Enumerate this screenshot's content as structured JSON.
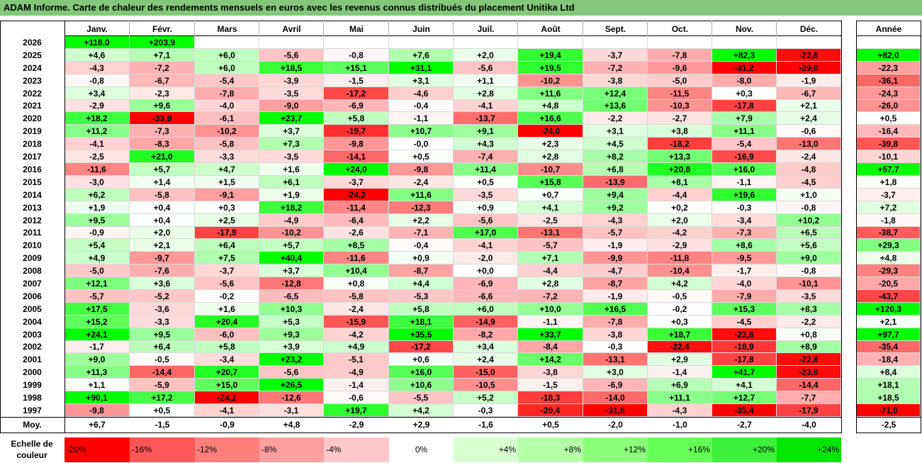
{
  "title": "ADAM Informe. Carte de chaleur des rendements mensuels en euros avec les revenus connus distribués du placement Unitika Ltd",
  "colors": {
    "title_bg": "#83c77a",
    "neg": "#ff0000",
    "pos": "#00ff00",
    "neutral": "#ffffff"
  },
  "chart_data": {
    "type": "heatmap",
    "title": "ADAM Informe. Carte de chaleur des rendements mensuels en euros avec les revenus connus distribués du placement Unitika Ltd",
    "columns": [
      "Janv.",
      "Févr.",
      "Mars",
      "Avril",
      "Mai",
      "Juin",
      "Juil.",
      "Août",
      "Sept.",
      "Oct.",
      "Nov.",
      "Déc."
    ],
    "year_label": "Année",
    "rows": [
      {
        "year": "2026",
        "values": [
          "+118,0",
          "+203,9",
          "",
          "",
          "",
          "",
          "",
          "",
          "",
          "",
          "",
          ""
        ],
        "annual": ""
      },
      {
        "year": "2025",
        "values": [
          "+4,6",
          "+7,1",
          "+6,0",
          "-5,6",
          "-0,8",
          "+7,6",
          "+2,0",
          "+19,4",
          "-3,7",
          "-7,8",
          "+82,3",
          "-22,8"
        ],
        "annual": "+82,0"
      },
      {
        "year": "2024",
        "values": [
          "-4,3",
          "-7,2",
          "+6,0",
          "+18,5",
          "+15,1",
          "+31,1",
          "-5,6",
          "+19,5",
          "-7,2",
          "-9,6",
          "-31,2",
          "-29,0"
        ],
        "annual": "-22,3"
      },
      {
        "year": "2023",
        "values": [
          "-0,8",
          "-6,7",
          "-5,4",
          "-3,9",
          "-1,5",
          "+3,1",
          "+1,1",
          "-10,2",
          "-3,8",
          "-5,0",
          "-8,0",
          "-1,9"
        ],
        "annual": "-36,1"
      },
      {
        "year": "2022",
        "values": [
          "+3,4",
          "-2,3",
          "-7,8",
          "-3,5",
          "-17,2",
          "-4,6",
          "+2,8",
          "+11,6",
          "+12,4",
          "-11,5",
          "+0,3",
          "-6,7"
        ],
        "annual": "-24,3"
      },
      {
        "year": "2021",
        "values": [
          "-2,9",
          "+9,6",
          "-4,0",
          "-9,0",
          "-6,9",
          "-0,4",
          "-4,1",
          "+4,8",
          "+13,6",
          "-10,3",
          "-17,8",
          "+2,1"
        ],
        "annual": "-26,0"
      },
      {
        "year": "2020",
        "values": [
          "+18,2",
          "-33,9",
          "-6,1",
          "+23,7",
          "+5,8",
          "-1,1",
          "-13,7",
          "+16,6",
          "-2,2",
          "-2,7",
          "+7,9",
          "+2,4"
        ],
        "annual": "+0,5"
      },
      {
        "year": "2019",
        "values": [
          "+11,2",
          "-7,3",
          "-10,2",
          "+3,7",
          "-19,7",
          "+10,7",
          "+9,1",
          "-24,0",
          "+3,1",
          "+3,8",
          "+11,1",
          "-0,6"
        ],
        "annual": "-16,4"
      },
      {
        "year": "2018",
        "values": [
          "-4,1",
          "-8,3",
          "-5,8",
          "+7,3",
          "-9,8",
          "-0,0",
          "+4,3",
          "+2,3",
          "+4,5",
          "-18,2",
          "-5,4",
          "-13,0"
        ],
        "annual": "-39,8"
      },
      {
        "year": "2017",
        "values": [
          "-2,5",
          "+21,0",
          "-3,3",
          "-3,5",
          "-14,1",
          "+0,5",
          "-7,4",
          "+2,8",
          "+8,2",
          "+13,3",
          "-16,9",
          "-2,4"
        ],
        "annual": "-10,1"
      },
      {
        "year": "2016",
        "values": [
          "-11,6",
          "+5,7",
          "+4,7",
          "+1,6",
          "+24,0",
          "-9,8",
          "+11,4",
          "-10,7",
          "+6,8",
          "+20,8",
          "+16,0",
          "-4,8"
        ],
        "annual": "+57,7"
      },
      {
        "year": "2015",
        "values": [
          "-3,0",
          "+1,4",
          "+1,5",
          "+6,1",
          "-3,7",
          "-2,4",
          "+0,5",
          "+15,8",
          "-13,9",
          "+8,1",
          "-1,1",
          "-4,5"
        ],
        "annual": "+1,8"
      },
      {
        "year": "2014",
        "values": [
          "+6,2",
          "-5,8",
          "-9,1",
          "+1,9",
          "-24,2",
          "+11,6",
          "-3,5",
          "+0,7",
          "+9,4",
          "-4,4",
          "+19,6",
          "+1,0"
        ],
        "annual": "-3,7"
      },
      {
        "year": "2013",
        "values": [
          "+1,9",
          "+0,4",
          "+0,3",
          "+18,2",
          "-11,4",
          "-12,3",
          "+0,9",
          "+4,1",
          "+9,2",
          "+0,2",
          "-0,3",
          "-0,8"
        ],
        "annual": "+7,2"
      },
      {
        "year": "2012",
        "values": [
          "+9,5",
          "+0,4",
          "+2,5",
          "-4,9",
          "-6,4",
          "+2,2",
          "-5,6",
          "-2,5",
          "-4,3",
          "+2,0",
          "-3,4",
          "+10,2"
        ],
        "annual": "-1,8"
      },
      {
        "year": "2011",
        "values": [
          "-0,9",
          "+2,0",
          "-17,8",
          "-10,2",
          "-2,6",
          "-7,1",
          "+17,0",
          "-13,1",
          "-5,7",
          "-4,2",
          "-7,3",
          "+6,5"
        ],
        "annual": "-38,7"
      },
      {
        "year": "2010",
        "values": [
          "+5,4",
          "+2,1",
          "+6,4",
          "+5,7",
          "+8,5",
          "-0,4",
          "-4,1",
          "-5,7",
          "-1,9",
          "-2,9",
          "+8,6",
          "+5,6"
        ],
        "annual": "+29,3"
      },
      {
        "year": "2009",
        "values": [
          "+4,9",
          "-9,7",
          "+7,5",
          "+40,4",
          "-11,6",
          "+0,9",
          "-2,0",
          "+7,1",
          "-9,9",
          "-11,8",
          "-9,5",
          "+9,0"
        ],
        "annual": "+4,8"
      },
      {
        "year": "2008",
        "values": [
          "-5,0",
          "-7,6",
          "-3,7",
          "+3,7",
          "+10,4",
          "-8,7",
          "+0,0",
          "-4,4",
          "-4,7",
          "-10,4",
          "-1,7",
          "-0,8"
        ],
        "annual": "-29,3"
      },
      {
        "year": "2007",
        "values": [
          "+12,1",
          "+3,6",
          "-5,6",
          "-12,8",
          "+0,8",
          "+4,4",
          "-6,9",
          "+2,8",
          "-8,7",
          "+4,2",
          "-4,0",
          "-10,1"
        ],
        "annual": "-20,5"
      },
      {
        "year": "2006",
        "values": [
          "-5,7",
          "-5,2",
          "-0,2",
          "-6,5",
          "-5,8",
          "-5,3",
          "-6,6",
          "-7,2",
          "-1,9",
          "-0,5",
          "-7,9",
          "-3,5"
        ],
        "annual": "-43,7"
      },
      {
        "year": "2005",
        "values": [
          "+17,5",
          "-3,6",
          "+1,6",
          "+10,3",
          "-2,4",
          "+5,8",
          "+6,0",
          "+10,0",
          "+16,5",
          "-0,2",
          "+15,3",
          "+8,3"
        ],
        "annual": "+120,3"
      },
      {
        "year": "2004",
        "values": [
          "+15,2",
          "-3,3",
          "+20,4",
          "+5,3",
          "-15,9",
          "+18,1",
          "-14,9",
          "-1,1",
          "-7,8",
          "+0,3",
          "-4,5",
          "-2,2"
        ],
        "annual": "+2,1"
      },
      {
        "year": "2003",
        "values": [
          "+24,1",
          "+9,5",
          "-6,0",
          "+9,3",
          "-4,2",
          "+35,5",
          "-8,2",
          "+33,7",
          "-3,8",
          "+18,7",
          "-22,8",
          "+0,8"
        ],
        "annual": "+97,7"
      },
      {
        "year": "2002",
        "values": [
          "-1,7",
          "+6,4",
          "+5,8",
          "+3,9",
          "+4,9",
          "-17,2",
          "+3,4",
          "-8,4",
          "-0,3",
          "-22,4",
          "-18,9",
          "+8,9"
        ],
        "annual": "-35,4"
      },
      {
        "year": "2001",
        "values": [
          "+9,0",
          "-0,5",
          "-3,4",
          "+23,2",
          "-5,1",
          "+0,6",
          "+2,4",
          "+14,2",
          "-13,1",
          "+2,9",
          "-17,8",
          "-22,8"
        ],
        "annual": "-18,4"
      },
      {
        "year": "2000",
        "values": [
          "+11,3",
          "-14,4",
          "+20,7",
          "-5,6",
          "-4,9",
          "+16,0",
          "-15,0",
          "-3,8",
          "+3,0",
          "-1,4",
          "+41,7",
          "-23,0"
        ],
        "annual": "+8,4"
      },
      {
        "year": "1999",
        "values": [
          "+1,1",
          "-5,9",
          "+15,0",
          "+26,5",
          "-1,4",
          "+10,6",
          "-10,5",
          "-1,5",
          "-6,9",
          "+6,9",
          "+4,1",
          "-14,4"
        ],
        "annual": "+18,1"
      },
      {
        "year": "1998",
        "values": [
          "+90,1",
          "+17,2",
          "-24,2",
          "-12,6",
          "-0,6",
          "-5,5",
          "+5,2",
          "-18,3",
          "-14,0",
          "+11,1",
          "+12,7",
          "-7,7"
        ],
        "annual": "+18,5"
      },
      {
        "year": "1997",
        "values": [
          "-9,8",
          "+0,5",
          "-4,1",
          "-3,1",
          "+19,7",
          "+4,2",
          "-0,3",
          "-20,4",
          "-31,6",
          "-4,3",
          "-35,4",
          "-17,9"
        ],
        "annual": "-71,0"
      }
    ],
    "average": {
      "label": "Moy.",
      "values": [
        "+6,7",
        "-1,5",
        "-0,9",
        "+4,8",
        "-2,9",
        "+2,9",
        "-1,6",
        "+0,5",
        "-2,0",
        "-1,0",
        "-2,7",
        "-4,0"
      ],
      "annual": "-2,5"
    },
    "color_scale": {
      "label": "Echelle de couleur",
      "stops": [
        "-20%",
        "-16%",
        "-12%",
        "-8%",
        "-4%",
        "0%",
        "+4%",
        "+8%",
        "+12%",
        "+16%",
        "+20%",
        "+24%"
      ],
      "colors": [
        "#ff0000",
        "#ff5757",
        "#ff7f7f",
        "#ff9f9f",
        "#ffc8c8",
        "#ffffff",
        "#d8ffd0",
        "#b4ffa8",
        "#8cff7a",
        "#66ff55",
        "#3df23a",
        "#00e600"
      ]
    }
  }
}
